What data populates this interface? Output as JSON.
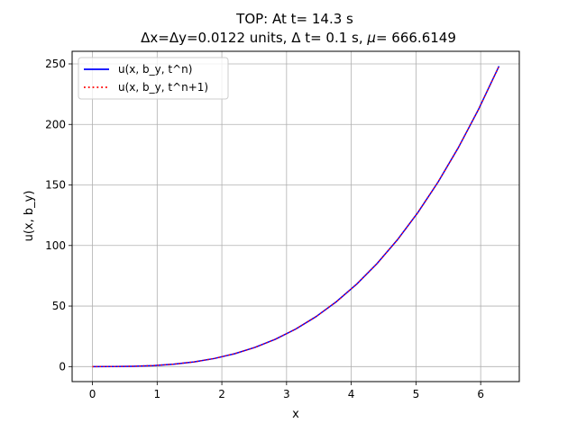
{
  "chart_data": {
    "type": "line",
    "title": "TOP: At t= 14.3 s",
    "subtitle": "Δx=Δy=0.0122 units, Δ t= 0.1 s, μ= 666.6149",
    "subtitle_parts": {
      "before_mu": "Δx=Δy=0.0122 units, Δ t= 0.1 s, ",
      "mu_symbol": "μ",
      "after_mu": "= 666.6149"
    },
    "xlabel": "x",
    "ylabel": "u(x, b_y)",
    "xlim": [
      -0.314,
      6.597
    ],
    "ylim": [
      -12.4,
      260.4
    ],
    "xticks": [
      0,
      1,
      2,
      3,
      4,
      5,
      6
    ],
    "yticks": [
      0,
      50,
      100,
      150,
      200,
      250
    ],
    "grid": true,
    "legend_placement": "top-left",
    "x": [
      0.0,
      0.3142,
      0.6283,
      0.9425,
      1.2566,
      1.5708,
      1.885,
      2.1991,
      2.5133,
      2.8274,
      3.1416,
      3.4558,
      3.7699,
      4.0841,
      4.3982,
      4.7124,
      5.0265,
      5.3407,
      5.6549,
      5.969,
      6.2832
    ],
    "series": [
      {
        "name": "u(x, b_y, t^n)",
        "color": "#0000ff",
        "line_style": "solid",
        "values": [
          0.0,
          0.031,
          0.248,
          0.837,
          1.984,
          3.876,
          6.697,
          10.635,
          15.875,
          22.603,
          31.006,
          41.27,
          53.579,
          68.122,
          85.082,
          104.647,
          127.0,
          152.331,
          180.82,
          212.647,
          248.05
        ]
      },
      {
        "name": "u(x, b_y, t^n+1)",
        "color": "#ff0000",
        "line_style": "dotted",
        "values": [
          0.0,
          0.031,
          0.248,
          0.837,
          1.984,
          3.876,
          6.697,
          10.635,
          15.875,
          22.603,
          31.006,
          41.27,
          53.579,
          68.122,
          85.082,
          104.647,
          127.0,
          152.331,
          180.82,
          212.647,
          248.05
        ]
      }
    ],
    "colors": {
      "axis": "#000000",
      "grid": "#b0b0b0",
      "legend_border": "#cccccc",
      "background": "#ffffff"
    }
  }
}
